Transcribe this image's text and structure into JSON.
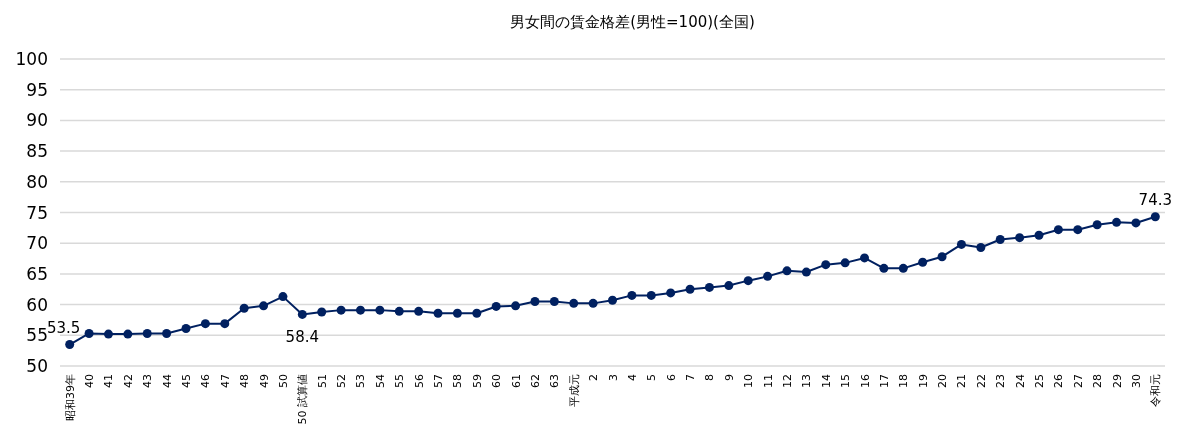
{
  "chart_data": {
    "type": "line",
    "title": "男女間の賃金格差(男性=100)(全国)",
    "categories": [
      "昭和39年",
      "40",
      "41",
      "42",
      "43",
      "44",
      "45",
      "46",
      "47",
      "48",
      "49",
      "50",
      "50 試算値",
      "51",
      "52",
      "53",
      "54",
      "55",
      "56",
      "57",
      "58",
      "59",
      "60",
      "61",
      "62",
      "63",
      "平成元",
      "2",
      "3",
      "4",
      "5",
      "6",
      "7",
      "8",
      "9",
      "10",
      "11",
      "12",
      "13",
      "14",
      "15",
      "16",
      "17",
      "18",
      "19",
      "20",
      "21",
      "22",
      "23",
      "24",
      "25",
      "26",
      "27",
      "28",
      "29",
      "30",
      "令和元"
    ],
    "series": [
      {
        "color": "#002060",
        "values": [
          53.5,
          55.3,
          55.2,
          55.2,
          55.3,
          55.3,
          56.1,
          56.9,
          56.9,
          59.4,
          59.8,
          61.3,
          58.4,
          58.8,
          59.1,
          59.1,
          59.1,
          58.9,
          58.9,
          58.6,
          58.6,
          58.6,
          59.7,
          59.8,
          60.5,
          60.5,
          60.2,
          60.2,
          60.7,
          61.5,
          61.5,
          61.9,
          62.5,
          62.8,
          63.1,
          63.9,
          64.6,
          65.5,
          65.3,
          66.5,
          66.8,
          67.6,
          65.9,
          65.9,
          66.9,
          67.8,
          69.8,
          69.3,
          70.6,
          70.9,
          71.3,
          72.2,
          72.2,
          73.0,
          73.4,
          73.3,
          74.3
        ],
        "value_labels": [
          "53.5",
          null,
          null,
          null,
          null,
          null,
          null,
          null,
          null,
          null,
          null,
          null,
          "58.4",
          null,
          null,
          null,
          null,
          null,
          null,
          null,
          null,
          null,
          null,
          null,
          null,
          null,
          null,
          null,
          null,
          null,
          null,
          null,
          null,
          null,
          null,
          null,
          null,
          null,
          null,
          null,
          null,
          null,
          null,
          null,
          null,
          null,
          null,
          null,
          null,
          null,
          null,
          null,
          null,
          null,
          null,
          null,
          "74.3"
        ]
      }
    ],
    "ylim": [
      50,
      100
    ],
    "yticks": [
      50,
      55,
      60,
      65,
      70,
      75,
      80,
      85,
      90,
      95,
      100
    ],
    "grid": "y",
    "marker": "circle",
    "line_style": "solid"
  }
}
